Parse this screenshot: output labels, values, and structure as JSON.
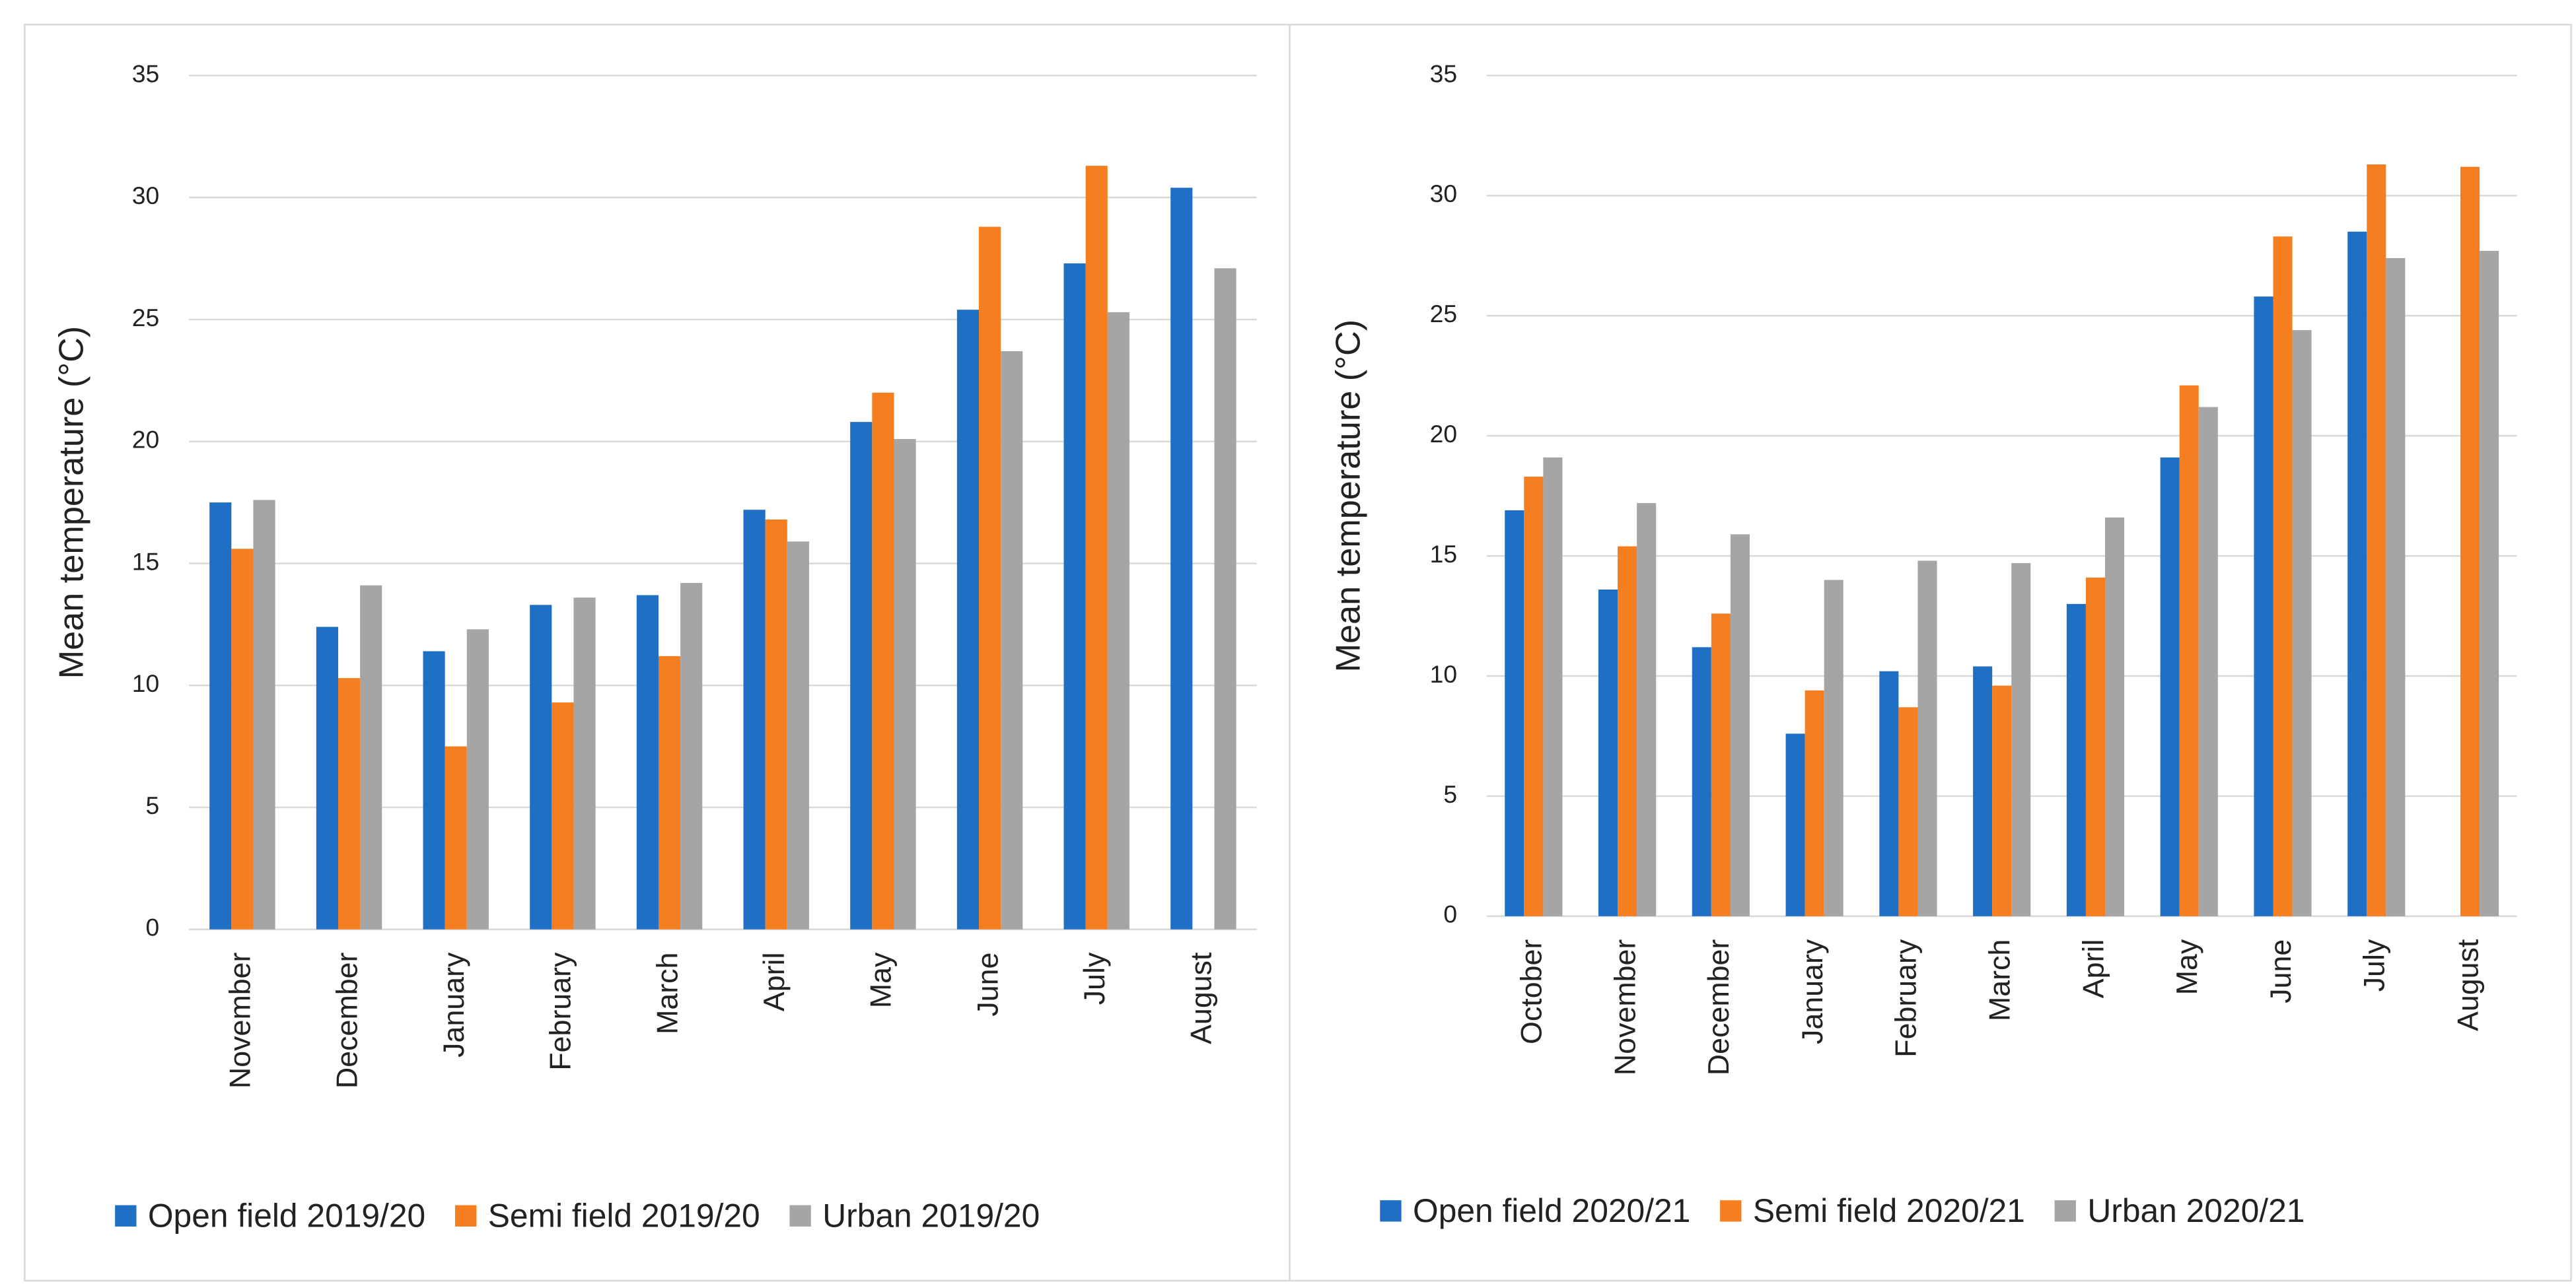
{
  "chart_data": [
    {
      "type": "bar",
      "y_label": "Mean temperature  (°C)",
      "categories": [
        "November",
        "December",
        "January",
        "February",
        "March",
        "April",
        "May",
        "June",
        "July",
        "August"
      ],
      "series": [
        {
          "name": "Open field 2019/20",
          "color": "#1f6fc5",
          "values": [
            17.5,
            12.4,
            11.4,
            13.3,
            13.7,
            17.2,
            20.8,
            25.4,
            27.3,
            30.4
          ]
        },
        {
          "name": "Semi field 2019/20",
          "color": "#f57f20",
          "values": [
            15.6,
            10.3,
            7.5,
            9.3,
            11.2,
            16.8,
            22.0,
            28.8,
            31.3,
            null
          ]
        },
        {
          "name": "Urban 2019/20",
          "color": "#a5a5a5",
          "values": [
            17.6,
            14.1,
            12.3,
            13.6,
            14.2,
            15.9,
            20.1,
            23.7,
            25.3,
            27.1
          ]
        }
      ],
      "ylim": [
        0,
        35
      ],
      "yticks": [
        0,
        5,
        10,
        15,
        20,
        25,
        30,
        35
      ],
      "grid": true,
      "legend": "bottom"
    },
    {
      "type": "bar",
      "y_label": "Mean temperature  (°C)",
      "categories": [
        "October",
        "November",
        "December",
        "January",
        "February",
        "March",
        "April",
        "May",
        "June",
        "July",
        "August"
      ],
      "series": [
        {
          "name": "Open field 2020/21",
          "color": "#1f6fc5",
          "values": [
            16.9,
            13.6,
            11.2,
            7.6,
            10.2,
            10.4,
            13.0,
            19.1,
            25.8,
            28.5,
            null
          ]
        },
        {
          "name": "Semi field 2020/21",
          "color": "#f57f20",
          "values": [
            18.3,
            15.4,
            12.6,
            9.4,
            8.7,
            9.6,
            14.1,
            22.1,
            28.3,
            31.3,
            31.2
          ]
        },
        {
          "name": "Urban 2020/21",
          "color": "#a5a5a5",
          "values": [
            19.1,
            17.2,
            15.9,
            14.0,
            14.8,
            14.7,
            16.6,
            21.2,
            24.4,
            27.4,
            27.7
          ]
        }
      ],
      "ylim": [
        0,
        35
      ],
      "yticks": [
        0,
        5,
        10,
        15,
        20,
        25,
        30,
        35
      ],
      "grid": true,
      "legend": "bottom"
    }
  ]
}
